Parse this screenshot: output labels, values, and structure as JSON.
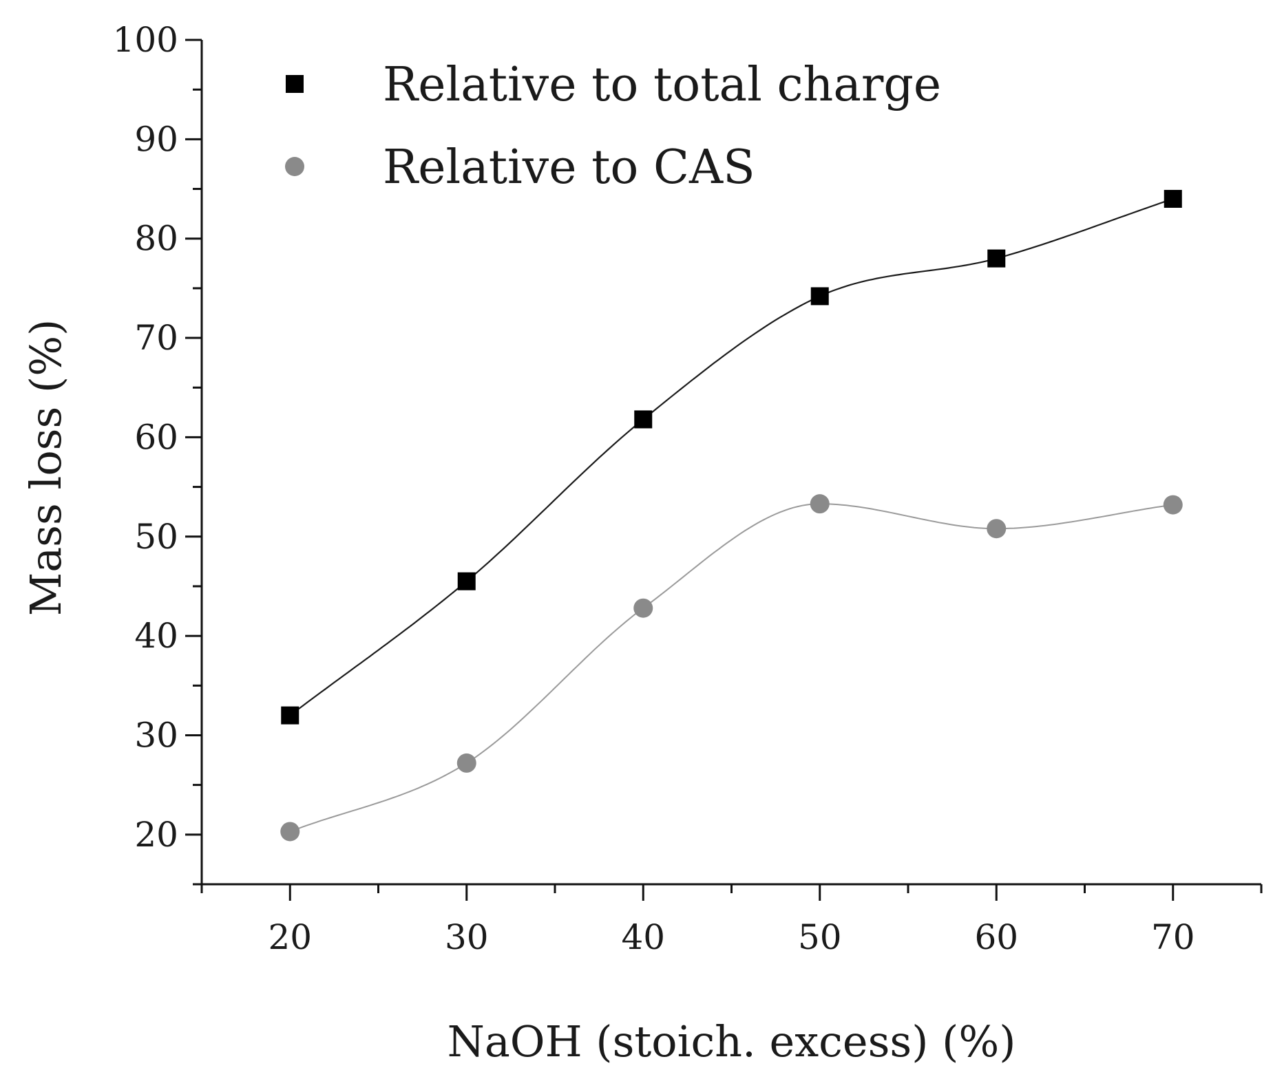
{
  "chart_data": {
    "type": "scatter",
    "title": "",
    "xlabel": "NaOH (stoich. excess) (%)",
    "ylabel": "Mass loss (%)",
    "xlim": [
      15,
      75
    ],
    "ylim": [
      15,
      100
    ],
    "x_ticks": [
      20,
      30,
      40,
      50,
      60,
      70
    ],
    "x_tick_labels": [
      "20",
      "30",
      "40",
      "50",
      "60",
      "70"
    ],
    "y_ticks": [
      20,
      30,
      40,
      50,
      60,
      70,
      80,
      90,
      100
    ],
    "y_tick_labels": [
      "20",
      "30",
      "40",
      "50",
      "60",
      "70",
      "80",
      "90",
      "100"
    ],
    "legend_position": "top-left",
    "series": [
      {
        "name": "Relative to total charge",
        "marker": "square",
        "color": "#000000",
        "line_color": "#1a1a1a",
        "x": [
          20,
          30,
          40,
          50,
          60,
          70
        ],
        "values": [
          32,
          45.5,
          61.8,
          74.2,
          78,
          84
        ]
      },
      {
        "name": "Relative to CAS",
        "marker": "circle",
        "color": "#8a8a8a",
        "line_color": "#9a9a9a",
        "x": [
          20,
          30,
          40,
          50,
          60,
          70
        ],
        "values": [
          20.3,
          27.2,
          42.8,
          53.3,
          50.8,
          53.2
        ]
      }
    ]
  }
}
